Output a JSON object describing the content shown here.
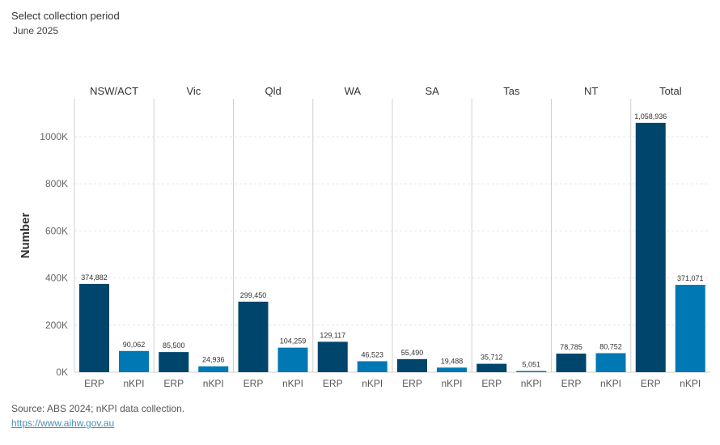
{
  "filter": {
    "label": "Select collection period",
    "value": "June 2025"
  },
  "footer": {
    "source": "Source: ABS 2024; nKPI data collection.",
    "link": "https://www.aihw.gov.au"
  },
  "chart_data": {
    "type": "bar",
    "ylabel": "Number",
    "ylim": [
      0,
      1100000
    ],
    "yticks": [
      0,
      200000,
      400000,
      600000,
      800000,
      1000000
    ],
    "ytick_labels": [
      "0K",
      "200K",
      "400K",
      "600K",
      "800K",
      "1000K"
    ],
    "grid": true,
    "bar_labels": [
      "ERP",
      "nKPI"
    ],
    "colors": {
      "ERP": "#00456b",
      "nKPI": "#0078b4"
    },
    "panels": [
      {
        "name": "NSW/ACT",
        "values": [
          374882,
          90062
        ],
        "labels": [
          "374,882",
          "90,062"
        ]
      },
      {
        "name": "Vic",
        "values": [
          85500,
          24936
        ],
        "labels": [
          "85,500",
          "24,936"
        ]
      },
      {
        "name": "Qld",
        "values": [
          299450,
          104259
        ],
        "labels": [
          "299,450",
          "104,259"
        ]
      },
      {
        "name": "WA",
        "values": [
          129117,
          46523
        ],
        "labels": [
          "129,117",
          "46,523"
        ]
      },
      {
        "name": "SA",
        "values": [
          55490,
          19488
        ],
        "labels": [
          "55,490",
          "19,488"
        ]
      },
      {
        "name": "Tas",
        "values": [
          35712,
          5051
        ],
        "labels": [
          "35,712",
          "5,051"
        ]
      },
      {
        "name": "NT",
        "values": [
          78785,
          80752
        ],
        "labels": [
          "78,785",
          "80,752"
        ]
      },
      {
        "name": "Total",
        "values": [
          1058936,
          371071
        ],
        "labels": [
          "1,058,936",
          "371,071"
        ]
      }
    ]
  }
}
